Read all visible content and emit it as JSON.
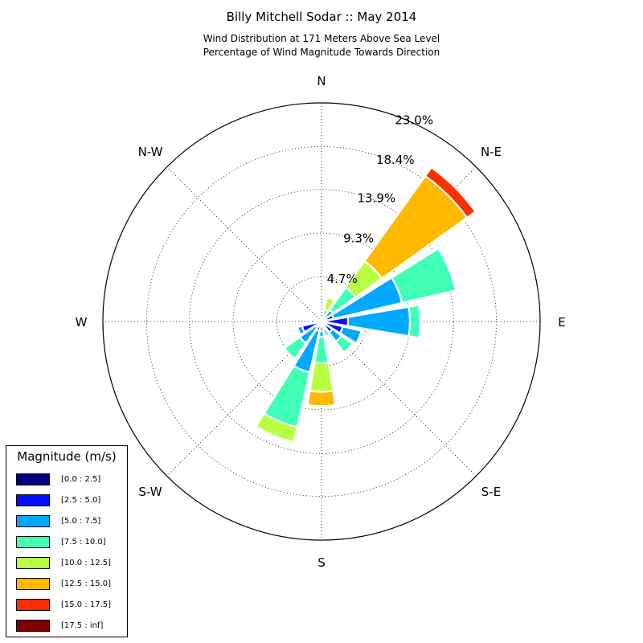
{
  "header": {
    "title": "Billy Mitchell Sodar :: May 2014",
    "subtitle_line1": "Wind Distribution at 171 Meters Above Sea Level",
    "subtitle_line2": "Percentage of Wind Magnitude Towards Direction"
  },
  "chart_data": {
    "type": "windrose",
    "title": "Billy Mitchell Sodar :: May 2014",
    "subtitle": "Wind Distribution at 171 Meters Above Sea Level / Percentage of Wind Magnitude Towards Direction",
    "radial_max": 23.0,
    "radial_ticks": [
      "4.7%",
      "9.3%",
      "13.9%",
      "18.4%",
      "23.0%"
    ],
    "radial_tick_values": [
      4.7,
      9.3,
      13.9,
      18.4,
      23.0
    ],
    "direction_labels": [
      "N",
      "N-E",
      "E",
      "S-E",
      "S",
      "S-W",
      "W",
      "N-W"
    ],
    "grid": true,
    "legend": {
      "title": "Magnitude (m/s)",
      "placement": "bottom-left",
      "bins": [
        {
          "label": "[0.0 : 2.5]",
          "color": "#00007f"
        },
        {
          "label": "[2.5 : 5.0]",
          "color": "#0010ff"
        },
        {
          "label": "[5.0 : 7.5]",
          "color": "#00a8ff"
        },
        {
          "label": "[7.5 : 10.0]",
          "color": "#40ffb7"
        },
        {
          "label": "[10.0 : 12.5]",
          "color": "#b7ff40"
        },
        {
          "label": "[12.5 : 15.0]",
          "color": "#ffb900"
        },
        {
          "label": "[15.0 : 17.5]",
          "color": "#ff3000"
        },
        {
          "label": "[17.5 : inf]",
          "color": "#7f0000"
        }
      ]
    },
    "sectors": [
      {
        "direction_deg": 0,
        "cumulative": [
          0.2,
          0.4,
          0.4,
          0.4,
          0.4,
          0.4,
          0.4,
          0.4
        ]
      },
      {
        "direction_deg": 22.5,
        "cumulative": [
          0.2,
          0.4,
          0.7,
          1.3,
          2.6,
          2.6,
          2.6,
          2.6
        ]
      },
      {
        "direction_deg": 45,
        "cumulative": [
          0.2,
          0.5,
          1.5,
          4.4,
          7.8,
          18.8,
          19.9,
          19.9
        ]
      },
      {
        "direction_deg": 67.5,
        "cumulative": [
          0.3,
          1.3,
          8.7,
          14.5,
          14.5,
          14.5,
          14.5,
          14.5
        ]
      },
      {
        "direction_deg": 90,
        "cumulative": [
          0.3,
          2.8,
          9.3,
          10.4,
          10.4,
          10.4,
          10.4,
          10.4
        ]
      },
      {
        "direction_deg": 112.5,
        "cumulative": [
          0.3,
          2.3,
          4.3,
          4.3,
          4.3,
          4.3,
          4.3,
          4.3
        ]
      },
      {
        "direction_deg": 135,
        "cumulative": [
          0.2,
          1.4,
          2.6,
          4.0,
          4.0,
          4.0,
          4.0,
          4.0
        ]
      },
      {
        "direction_deg": 157.5,
        "cumulative": [
          0.1,
          0.4,
          0.8,
          1.6,
          1.6,
          1.6,
          1.6,
          1.6
        ]
      },
      {
        "direction_deg": 180,
        "cumulative": [
          0.2,
          1.0,
          1.6,
          4.4,
          7.4,
          8.9,
          8.9,
          8.9
        ]
      },
      {
        "direction_deg": 202.5,
        "cumulative": [
          0.2,
          1.0,
          5.5,
          11.4,
          13.0,
          13.0,
          13.0,
          13.0
        ]
      },
      {
        "direction_deg": 225,
        "cumulative": [
          0.2,
          0.8,
          2.8,
          4.8,
          4.8,
          4.8,
          4.8,
          4.8
        ]
      },
      {
        "direction_deg": 247.5,
        "cumulative": [
          0.3,
          2.1,
          2.6,
          2.6,
          2.6,
          2.6,
          2.6,
          2.6
        ]
      },
      {
        "direction_deg": 270,
        "cumulative": [
          0.3,
          0.7,
          1.1,
          1.1,
          1.1,
          1.1,
          1.1,
          1.1
        ]
      },
      {
        "direction_deg": 292.5,
        "cumulative": [
          0.2,
          0.3,
          0.3,
          0.3,
          0.3,
          0.3,
          0.3,
          0.3
        ]
      },
      {
        "direction_deg": 315,
        "cumulative": [
          0.1,
          0.1,
          0.1,
          0.1,
          0.1,
          0.1,
          0.1,
          0.1
        ]
      },
      {
        "direction_deg": 337.5,
        "cumulative": [
          0.1,
          0.2,
          0.2,
          0.2,
          0.2,
          0.2,
          0.2,
          0.2
        ]
      }
    ]
  }
}
